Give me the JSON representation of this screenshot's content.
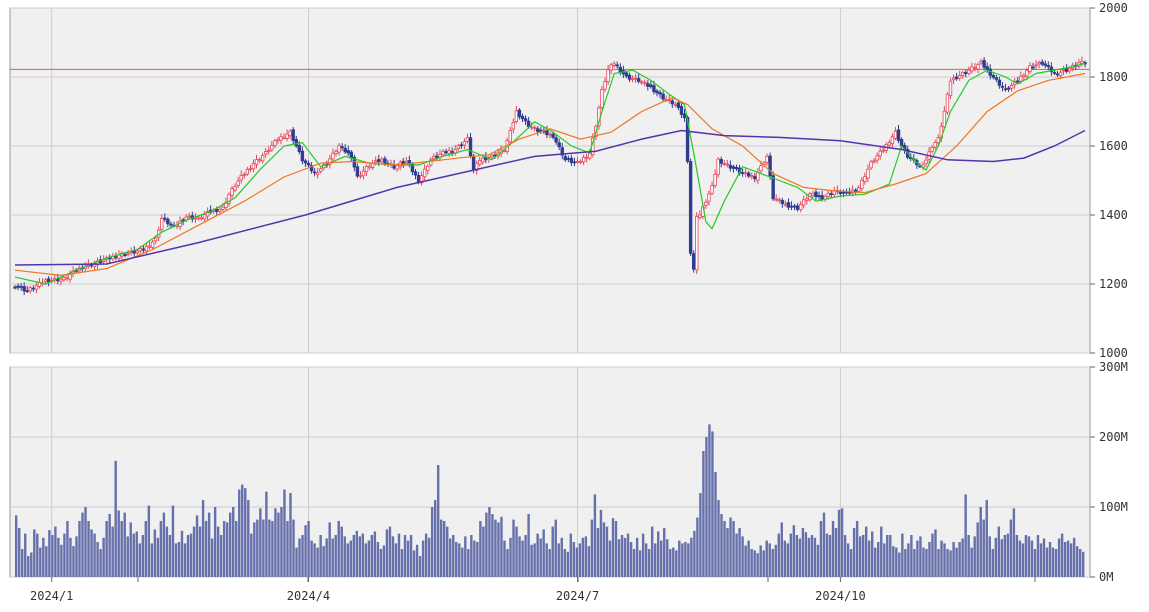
{
  "chart_data": [
    {
      "type": "candlestick",
      "panel": "price",
      "y_ticks": [
        1000,
        1200,
        1400,
        1600,
        1800,
        2000
      ],
      "ylim": [
        1000,
        2000
      ],
      "x_tick_labels": [
        "2024/1",
        "2024/4",
        "2024/7",
        "2024/10"
      ],
      "reference_line": 1822,
      "grid": true,
      "candle_close_path": [
        [
          0,
          1195
        ],
        [
          4,
          1180
        ],
        [
          10,
          1210
        ],
        [
          16,
          1215
        ],
        [
          22,
          1250
        ],
        [
          28,
          1265
        ],
        [
          34,
          1285
        ],
        [
          38,
          1290
        ],
        [
          42,
          1300
        ],
        [
          46,
          1330
        ],
        [
          48,
          1390
        ],
        [
          52,
          1365
        ],
        [
          56,
          1395
        ],
        [
          60,
          1390
        ],
        [
          64,
          1410
        ],
        [
          68,
          1420
        ],
        [
          70,
          1460
        ],
        [
          74,
          1510
        ],
        [
          78,
          1550
        ],
        [
          82,
          1580
        ],
        [
          86,
          1620
        ],
        [
          90,
          1640
        ],
        [
          94,
          1560
        ],
        [
          98,
          1520
        ],
        [
          102,
          1550
        ],
        [
          106,
          1600
        ],
        [
          110,
          1570
        ],
        [
          112,
          1510
        ],
        [
          116,
          1545
        ],
        [
          120,
          1560
        ],
        [
          124,
          1540
        ],
        [
          128,
          1555
        ],
        [
          132,
          1500
        ],
        [
          136,
          1560
        ],
        [
          140,
          1580
        ],
        [
          144,
          1590
        ],
        [
          148,
          1620
        ],
        [
          150,
          1530
        ],
        [
          152,
          1560
        ],
        [
          156,
          1570
        ],
        [
          160,
          1590
        ],
        [
          162,
          1640
        ],
        [
          164,
          1700
        ],
        [
          168,
          1660
        ],
        [
          172,
          1640
        ],
        [
          176,
          1630
        ],
        [
          180,
          1560
        ],
        [
          184,
          1550
        ],
        [
          188,
          1580
        ],
        [
          190,
          1660
        ],
        [
          192,
          1760
        ],
        [
          194,
          1820
        ],
        [
          196,
          1840
        ],
        [
          200,
          1800
        ],
        [
          204,
          1790
        ],
        [
          208,
          1770
        ],
        [
          212,
          1740
        ],
        [
          216,
          1720
        ],
        [
          219,
          1680
        ],
        [
          220,
          1560
        ],
        [
          221,
          1290
        ],
        [
          222,
          1240
        ],
        [
          223,
          1400
        ],
        [
          224,
          1400
        ],
        [
          226,
          1440
        ],
        [
          228,
          1480
        ],
        [
          230,
          1560
        ],
        [
          234,
          1540
        ],
        [
          238,
          1520
        ],
        [
          242,
          1510
        ],
        [
          246,
          1570
        ],
        [
          248,
          1450
        ],
        [
          252,
          1430
        ],
        [
          256,
          1420
        ],
        [
          260,
          1460
        ],
        [
          264,
          1450
        ],
        [
          268,
          1470
        ],
        [
          272,
          1460
        ],
        [
          276,
          1480
        ],
        [
          280,
          1550
        ],
        [
          284,
          1590
        ],
        [
          288,
          1640
        ],
        [
          290,
          1600
        ],
        [
          292,
          1570
        ],
        [
          296,
          1540
        ],
        [
          298,
          1560
        ],
        [
          300,
          1600
        ],
        [
          302,
          1620
        ],
        [
          304,
          1700
        ],
        [
          306,
          1790
        ],
        [
          308,
          1800
        ],
        [
          312,
          1820
        ],
        [
          316,
          1840
        ],
        [
          320,
          1800
        ],
        [
          324,
          1760
        ],
        [
          328,
          1790
        ],
        [
          332,
          1830
        ],
        [
          336,
          1840
        ],
        [
          340,
          1810
        ],
        [
          344,
          1820
        ],
        [
          348,
          1840
        ],
        [
          350,
          1840
        ]
      ],
      "series": [
        {
          "name": "",
          "color": "#22cc22",
          "points": [
            [
              0,
              1220
            ],
            [
              10,
              1200
            ],
            [
              20,
              1240
            ],
            [
              30,
              1275
            ],
            [
              40,
              1300
            ],
            [
              48,
              1350
            ],
            [
              56,
              1385
            ],
            [
              64,
              1410
            ],
            [
              72,
              1450
            ],
            [
              80,
              1530
            ],
            [
              88,
              1600
            ],
            [
              94,
              1610
            ],
            [
              100,
              1540
            ],
            [
              108,
              1570
            ],
            [
              116,
              1550
            ],
            [
              124,
              1545
            ],
            [
              132,
              1545
            ],
            [
              140,
              1570
            ],
            [
              148,
              1590
            ],
            [
              156,
              1560
            ],
            [
              164,
              1620
            ],
            [
              170,
              1670
            ],
            [
              176,
              1640
            ],
            [
              182,
              1600
            ],
            [
              188,
              1580
            ],
            [
              192,
              1700
            ],
            [
              196,
              1810
            ],
            [
              202,
              1820
            ],
            [
              208,
              1790
            ],
            [
              214,
              1750
            ],
            [
              219,
              1720
            ],
            [
              222,
              1580
            ],
            [
              226,
              1380
            ],
            [
              228,
              1360
            ],
            [
              232,
              1440
            ],
            [
              238,
              1540
            ],
            [
              244,
              1520
            ],
            [
              250,
              1500
            ],
            [
              256,
              1480
            ],
            [
              262,
              1440
            ],
            [
              270,
              1455
            ],
            [
              278,
              1460
            ],
            [
              286,
              1490
            ],
            [
              290,
              1600
            ],
            [
              294,
              1560
            ],
            [
              298,
              1530
            ],
            [
              302,
              1600
            ],
            [
              306,
              1700
            ],
            [
              312,
              1790
            ],
            [
              318,
              1820
            ],
            [
              324,
              1800
            ],
            [
              328,
              1780
            ],
            [
              334,
              1810
            ],
            [
              340,
              1820
            ],
            [
              346,
              1830
            ],
            [
              350,
              1840
            ]
          ]
        },
        {
          "name": "",
          "color": "#ee7722",
          "points": [
            [
              0,
              1240
            ],
            [
              15,
              1225
            ],
            [
              30,
              1245
            ],
            [
              45,
              1300
            ],
            [
              60,
              1370
            ],
            [
              75,
              1440
            ],
            [
              88,
              1510
            ],
            [
              100,
              1550
            ],
            [
              110,
              1555
            ],
            [
              125,
              1545
            ],
            [
              140,
              1560
            ],
            [
              155,
              1575
            ],
            [
              165,
              1620
            ],
            [
              175,
              1650
            ],
            [
              185,
              1620
            ],
            [
              195,
              1640
            ],
            [
              205,
              1700
            ],
            [
              215,
              1740
            ],
            [
              220,
              1720
            ],
            [
              228,
              1650
            ],
            [
              238,
              1600
            ],
            [
              248,
              1520
            ],
            [
              258,
              1480
            ],
            [
              268,
              1470
            ],
            [
              278,
              1465
            ],
            [
              288,
              1490
            ],
            [
              298,
              1520
            ],
            [
              308,
              1600
            ],
            [
              318,
              1700
            ],
            [
              328,
              1760
            ],
            [
              338,
              1790
            ],
            [
              350,
              1810
            ]
          ]
        },
        {
          "name": "",
          "color": "#5533aa",
          "points": [
            [
              0,
              1255
            ],
            [
              30,
              1258
            ],
            [
              60,
              1320
            ],
            [
              95,
              1400
            ],
            [
              125,
              1480
            ],
            [
              150,
              1530
            ],
            [
              170,
              1570
            ],
            [
              190,
              1585
            ],
            [
              205,
              1620
            ],
            [
              218,
              1645
            ],
            [
              232,
              1630
            ],
            [
              250,
              1625
            ],
            [
              270,
              1615
            ],
            [
              290,
              1590
            ],
            [
              305,
              1560
            ],
            [
              320,
              1555
            ],
            [
              330,
              1565
            ],
            [
              340,
              1600
            ],
            [
              350,
              1645
            ]
          ]
        }
      ]
    },
    {
      "type": "bar",
      "panel": "volume",
      "y_ticks": [
        "0M",
        "100M",
        "200M",
        "300M"
      ],
      "ylim": [
        0,
        300
      ],
      "x_tick_labels": [
        "2024/1",
        "2024/4",
        "2024/7",
        "2024/10"
      ],
      "grid": true,
      "color": "#6670ab",
      "values": [
        88,
        70,
        40,
        62,
        30,
        35,
        68,
        62,
        42,
        56,
        44,
        67,
        60,
        72,
        56,
        46,
        62,
        80,
        56,
        44,
        58,
        80,
        92,
        100,
        80,
        68,
        62,
        50,
        40,
        56,
        80,
        90,
        72,
        166,
        95,
        80,
        92,
        58,
        78,
        62,
        65,
        48,
        60,
        80,
        102,
        48,
        68,
        56,
        80,
        92,
        72,
        60,
        102,
        48,
        50,
        66,
        48,
        60,
        62,
        72,
        88,
        72,
        110,
        80,
        92,
        55,
        100,
        72,
        60,
        80,
        78,
        92,
        100,
        80,
        125,
        132,
        127,
        110,
        62,
        78,
        82,
        98,
        82,
        122,
        82,
        80,
        98,
        92,
        100,
        125,
        80,
        120,
        82,
        42,
        55,
        60,
        74,
        80,
        52,
        48,
        42,
        60,
        44,
        55,
        78,
        55,
        60,
        80,
        72,
        58,
        48,
        52,
        60,
        66,
        58,
        62,
        48,
        52,
        60,
        65,
        50,
        40,
        45,
        68,
        72,
        58,
        48,
        62,
        40,
        60,
        52,
        60,
        38,
        46,
        30,
        52,
        62,
        56,
        100,
        110,
        160,
        82,
        80,
        72,
        55,
        60,
        50,
        48,
        42,
        58,
        40,
        60,
        52,
        50,
        80,
        72,
        92,
        100,
        90,
        82,
        78,
        86,
        52,
        40,
        56,
        82,
        72,
        58,
        52,
        60,
        90,
        46,
        48,
        62,
        55,
        68,
        48,
        40,
        72,
        82,
        48,
        56,
        40,
        36,
        62,
        50,
        42,
        48,
        56,
        58,
        44,
        82,
        118,
        70,
        96,
        78,
        72,
        52,
        84,
        80,
        54,
        60,
        56,
        62,
        50,
        40,
        56,
        38,
        62,
        48,
        40,
        72,
        48,
        65,
        52,
        70,
        54,
        40,
        42,
        38,
        52,
        48,
        50,
        48,
        56,
        66,
        85,
        120,
        180,
        200,
        218,
        208,
        150,
        110,
        90,
        80,
        70,
        85,
        80,
        62,
        70,
        58,
        45,
        52,
        40,
        38,
        34,
        45,
        38,
        52,
        48,
        40,
        46,
        62,
        78,
        52,
        48,
        62,
        74,
        60,
        55,
        70,
        64,
        56,
        60,
        56,
        46,
        80,
        92,
        62,
        60,
        80,
        70,
        96,
        98,
        60,
        48,
        40,
        70,
        80,
        58,
        60,
        72,
        52,
        65,
        42,
        50,
        72,
        48,
        60,
        60,
        44,
        42,
        35,
        62,
        40,
        48,
        60,
        40,
        52,
        58,
        42,
        40,
        50,
        62,
        68,
        40,
        52,
        48,
        40,
        38,
        50,
        42,
        50,
        55,
        118,
        60,
        42,
        58,
        78,
        100,
        82,
        110,
        58,
        40,
        56,
        72,
        54,
        60,
        62,
        82,
        98,
        60,
        52,
        48,
        60,
        58,
        52,
        40,
        60,
        48,
        55,
        42,
        50,
        42,
        40,
        55,
        62,
        50,
        52,
        48,
        56,
        44,
        40,
        36
      ]
    }
  ]
}
